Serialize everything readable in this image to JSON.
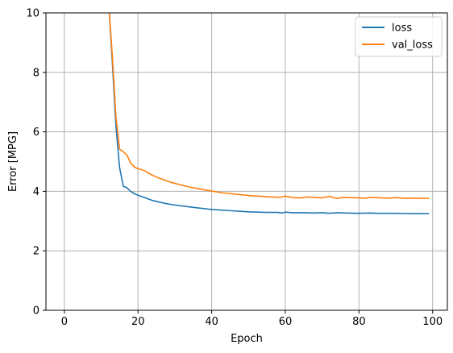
{
  "chart_data": {
    "type": "line",
    "xlabel": "Epoch",
    "ylabel": "Error [MPG]",
    "xlim": [
      -5,
      104
    ],
    "ylim": [
      0,
      10
    ],
    "xticks": [
      0,
      20,
      40,
      60,
      80,
      100
    ],
    "yticks": [
      0,
      2,
      4,
      6,
      8,
      10
    ],
    "grid": true,
    "legend_position": "top-right",
    "series": [
      {
        "name": "loss",
        "color": "#1f77b4",
        "points": [
          [
            12,
            10.4
          ],
          [
            13,
            8.4
          ],
          [
            14,
            6.2
          ],
          [
            15,
            4.8
          ],
          [
            16,
            4.17
          ],
          [
            17,
            4.12
          ],
          [
            18,
            4.0
          ],
          [
            19,
            3.92
          ],
          [
            20,
            3.87
          ],
          [
            22,
            3.78
          ],
          [
            24,
            3.69
          ],
          [
            26,
            3.63
          ],
          [
            28,
            3.58
          ],
          [
            30,
            3.54
          ],
          [
            35,
            3.46
          ],
          [
            40,
            3.39
          ],
          [
            45,
            3.35
          ],
          [
            50,
            3.31
          ],
          [
            55,
            3.29
          ],
          [
            58,
            3.29
          ],
          [
            59,
            3.27
          ],
          [
            60,
            3.3
          ],
          [
            62,
            3.28
          ],
          [
            65,
            3.28
          ],
          [
            68,
            3.27
          ],
          [
            70,
            3.28
          ],
          [
            72,
            3.26
          ],
          [
            74,
            3.28
          ],
          [
            76,
            3.27
          ],
          [
            80,
            3.26
          ],
          [
            83,
            3.27
          ],
          [
            85,
            3.26
          ],
          [
            90,
            3.26
          ],
          [
            95,
            3.25
          ],
          [
            99,
            3.25
          ]
        ]
      },
      {
        "name": "val_loss",
        "color": "#ff7f0e",
        "points": [
          [
            12,
            10.4
          ],
          [
            13,
            8.6
          ],
          [
            14,
            6.5
          ],
          [
            15,
            5.42
          ],
          [
            16,
            5.33
          ],
          [
            17,
            5.22
          ],
          [
            18,
            4.95
          ],
          [
            19,
            4.82
          ],
          [
            20,
            4.76
          ],
          [
            21,
            4.73
          ],
          [
            22,
            4.68
          ],
          [
            23,
            4.6
          ],
          [
            25,
            4.48
          ],
          [
            27,
            4.39
          ],
          [
            29,
            4.3
          ],
          [
            30,
            4.27
          ],
          [
            32,
            4.2
          ],
          [
            35,
            4.12
          ],
          [
            38,
            4.05
          ],
          [
            40,
            4.01
          ],
          [
            43,
            3.95
          ],
          [
            46,
            3.91
          ],
          [
            50,
            3.86
          ],
          [
            55,
            3.82
          ],
          [
            58,
            3.8
          ],
          [
            59,
            3.81
          ],
          [
            60,
            3.84
          ],
          [
            62,
            3.79
          ],
          [
            64,
            3.78
          ],
          [
            66,
            3.81
          ],
          [
            68,
            3.8
          ],
          [
            70,
            3.78
          ],
          [
            72,
            3.83
          ],
          [
            74,
            3.76
          ],
          [
            76,
            3.8
          ],
          [
            80,
            3.78
          ],
          [
            82,
            3.77
          ],
          [
            83,
            3.8
          ],
          [
            86,
            3.78
          ],
          [
            88,
            3.77
          ],
          [
            90,
            3.79
          ],
          [
            92,
            3.77
          ],
          [
            95,
            3.77
          ],
          [
            99,
            3.76
          ]
        ]
      }
    ]
  }
}
